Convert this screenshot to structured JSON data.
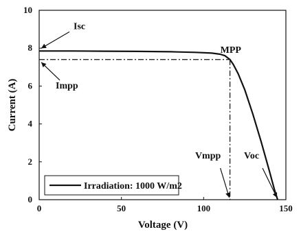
{
  "chart_data": {
    "type": "line",
    "title": "",
    "xlabel": "Voltage (V)",
    "ylabel": "Current (A)",
    "xlim": [
      0,
      150
    ],
    "ylim": [
      0,
      10
    ],
    "x_ticks": [
      0,
      50,
      100,
      150
    ],
    "y_ticks": [
      0,
      2,
      4,
      6,
      8,
      10
    ],
    "grid": false,
    "legend": {
      "placement": "bottom-left",
      "entries": [
        "Irradiation: 1000 W/m2"
      ]
    },
    "series": [
      {
        "name": "Irradiation: 1000 W/m2",
        "color": "#111111",
        "x": [
          0,
          20,
          40,
          60,
          80,
          95,
          105,
          110,
          113,
          116,
          118,
          121,
          125,
          130,
          135,
          140,
          143,
          145
        ],
        "y": [
          7.85,
          7.85,
          7.84,
          7.83,
          7.81,
          7.78,
          7.74,
          7.68,
          7.6,
          7.4,
          7.15,
          6.65,
          5.8,
          4.5,
          3.05,
          1.5,
          0.55,
          0.0
        ]
      }
    ],
    "mpp": {
      "x": 116,
      "y": 7.4
    },
    "annotations": [
      {
        "id": "isc",
        "label": "Isc",
        "x": 0,
        "y": 7.85
      },
      {
        "id": "impp",
        "label": "Impp",
        "x": 0,
        "y": 7.4
      },
      {
        "id": "mpp",
        "label": "MPP",
        "x": 116,
        "y": 7.4
      },
      {
        "id": "vmpp",
        "label": "Vmpp",
        "x": 116,
        "y": 0
      },
      {
        "id": "voc",
        "label": "Voc",
        "x": 145,
        "y": 0
      }
    ]
  }
}
